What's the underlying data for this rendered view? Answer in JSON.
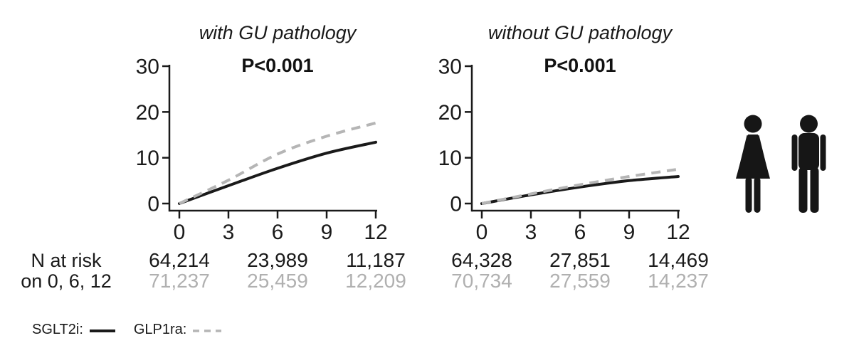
{
  "chart_data": [
    {
      "type": "line",
      "title": "with GU pathology",
      "p_value_label": "P<0.001",
      "xlim": [
        0,
        12
      ],
      "ylim": [
        0,
        30
      ],
      "x_ticks": [
        0,
        3,
        6,
        9,
        12
      ],
      "y_ticks": [
        0,
        10,
        20,
        30
      ],
      "grid": false,
      "legend_position": "none",
      "x": [
        0,
        3,
        6,
        9,
        12
      ],
      "series": [
        {
          "name": "SGLT2i",
          "line_style": "solid",
          "color": "#1a1a1a",
          "values": [
            0,
            3.9,
            7.7,
            11.0,
            13.4
          ]
        },
        {
          "name": "GLP1ra",
          "line_style": "dashed",
          "color": "#b5b5b5",
          "values": [
            0,
            5.1,
            10.8,
            14.7,
            17.6
          ]
        }
      ],
      "n_at_risk": {
        "times": [
          0,
          6,
          12
        ],
        "rows": [
          {
            "name": "SGLT2i",
            "color": "#1a1a1a",
            "values": [
              "64,214",
              "23,989",
              "11,187"
            ]
          },
          {
            "name": "GLP1ra",
            "color": "#b0b0b0",
            "values": [
              "71,237",
              "25,459",
              "12,209"
            ]
          }
        ]
      }
    },
    {
      "type": "line",
      "title": "without GU pathology",
      "p_value_label": "P<0.001",
      "xlim": [
        0,
        12
      ],
      "ylim": [
        0,
        30
      ],
      "x_ticks": [
        0,
        3,
        6,
        9,
        12
      ],
      "y_ticks": [
        0,
        10,
        20,
        30
      ],
      "grid": false,
      "legend_position": "none",
      "x": [
        0,
        3,
        6,
        9,
        12
      ],
      "series": [
        {
          "name": "SGLT2i",
          "line_style": "solid",
          "color": "#1a1a1a",
          "values": [
            0,
            1.9,
            3.6,
            5.0,
            5.9
          ]
        },
        {
          "name": "GLP1ra",
          "line_style": "dashed",
          "color": "#b5b5b5",
          "values": [
            0,
            2.1,
            4.1,
            5.9,
            7.5
          ]
        }
      ],
      "n_at_risk": {
        "times": [
          0,
          6,
          12
        ],
        "rows": [
          {
            "name": "SGLT2i",
            "color": "#1a1a1a",
            "values": [
              "64,328",
              "27,851",
              "14,469"
            ]
          },
          {
            "name": "GLP1ra",
            "color": "#b0b0b0",
            "values": [
              "70,734",
              "27,559",
              "14,237"
            ]
          }
        ]
      }
    }
  ],
  "risk_label": {
    "line1": "N at risk",
    "line2": "on 0, 6, 12"
  },
  "legend": [
    {
      "label": "SGLT2i:",
      "line_style": "solid",
      "color": "#1a1a1a"
    },
    {
      "label": "GLP1ra:",
      "line_style": "dashed",
      "color": "#b5b5b5"
    }
  ],
  "icons": [
    {
      "name": "female"
    },
    {
      "name": "male"
    }
  ],
  "colors": {
    "background": "#ffffff",
    "axis": "#1a1a1a",
    "text": "#1a1a1a",
    "muted": "#b0b0b0",
    "icon": "#161616"
  }
}
